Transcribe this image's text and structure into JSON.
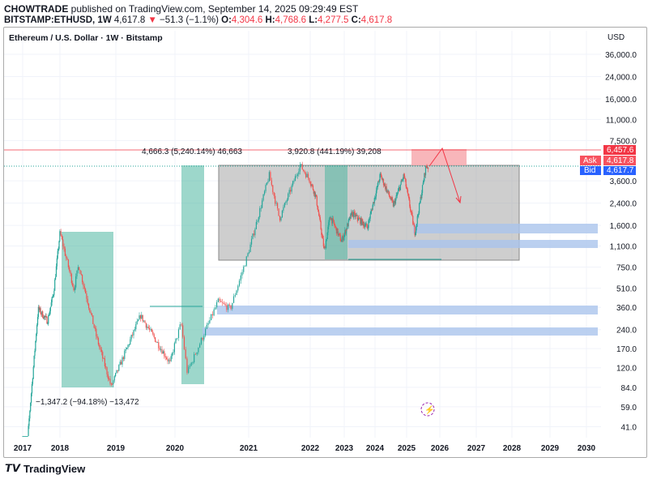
{
  "header": {
    "publisher": "CHOWTRADE",
    "published_text": "published on TradingView.com, September 14, 2025 09:29:49 EST",
    "symbol": "BITSTAMP:ETHUSD, 1W",
    "last": "4,617.8",
    "change": "−51.3 (−1.1%)",
    "open_label": "O:",
    "open": "4,304.6",
    "high_label": "H:",
    "high": "4,768.6",
    "low_label": "L:",
    "low": "4,277.5",
    "close_label": "C:",
    "close": "4,617.8"
  },
  "chart_title": "Ethereum / U.S. Dollar · 1W · Bitstamp",
  "currency": "USD",
  "price_badges": {
    "target": "6,457.6",
    "ask_label": "Ask",
    "ask": "4,617.8",
    "bid_label": "Bid",
    "bid": "4,617.7"
  },
  "annotations": {
    "rally_2019_2021": "4,666.3 (5,240.14%) 46,663",
    "rally_2022_2025": "3,920.8 (441.19%) 39,208",
    "drop_2018": "−1,347.2 (−94.18%) −13,472"
  },
  "footer": {
    "brand": "TradingView"
  },
  "colors": {
    "up": "#26a69a",
    "down": "#ef5350",
    "range_box": "#9e9e9e",
    "zone": "#aac4ec",
    "measure": "#4db6a0"
  },
  "chart_data": {
    "type": "candlestick",
    "scale": "log",
    "timeframe": "1W",
    "grid": true,
    "y_ticks": [
      36000,
      24000,
      16000,
      11000,
      7500,
      3600,
      2400,
      1600,
      1100,
      750,
      510,
      360,
      240,
      170,
      120,
      84,
      59,
      41
    ],
    "x_ticks": [
      "2017",
      "2018",
      "2019",
      "2020",
      "2021",
      "2022",
      "2023",
      "2024",
      "2025",
      "2026",
      "2027",
      "2028",
      "2029",
      "2030"
    ],
    "price_path": [
      [
        "2017-01",
        9
      ],
      [
        "2017-03",
        45
      ],
      [
        "2017-06",
        350
      ],
      [
        "2017-09",
        280
      ],
      [
        "2017-11",
        480
      ],
      [
        "2018-01",
        1400
      ],
      [
        "2018-04",
        500
      ],
      [
        "2018-05",
        780
      ],
      [
        "2018-09",
        200
      ],
      [
        "2018-12",
        85
      ],
      [
        "2019-06",
        310
      ],
      [
        "2019-12",
        130
      ],
      [
        "2020-02",
        270
      ],
      [
        "2020-03",
        110
      ],
      [
        "2020-08",
        400
      ],
      [
        "2020-10",
        350
      ],
      [
        "2020-12",
        700
      ],
      [
        "2021-05",
        4000
      ],
      [
        "2021-07",
        1800
      ],
      [
        "2021-11",
        4800
      ],
      [
        "2022-03",
        2700
      ],
      [
        "2022-06",
        1000
      ],
      [
        "2022-08",
        1900
      ],
      [
        "2022-12",
        1200
      ],
      [
        "2023-04",
        2000
      ],
      [
        "2023-10",
        1550
      ],
      [
        "2024-03",
        4000
      ],
      [
        "2024-08",
        2300
      ],
      [
        "2024-12",
        4000
      ],
      [
        "2025-04",
        1400
      ],
      [
        "2025-08",
        4700
      ],
      [
        "2025-09",
        4617.8
      ]
    ]
  }
}
